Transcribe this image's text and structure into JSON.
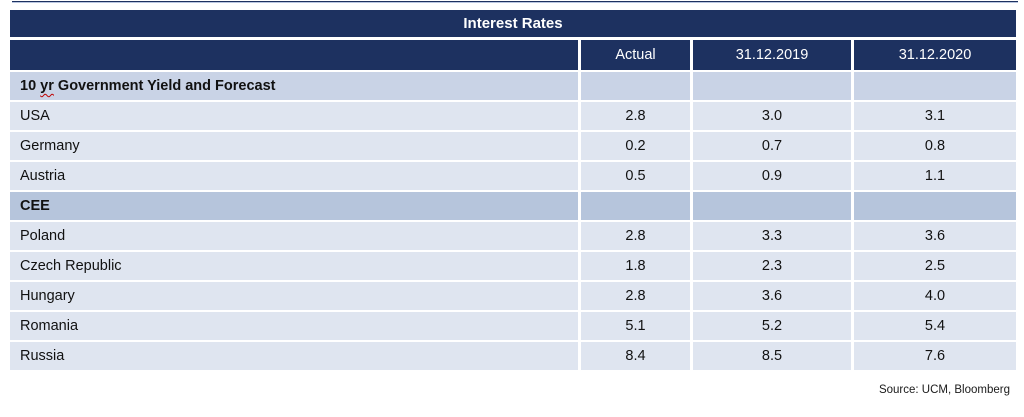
{
  "table": {
    "title": "Interest Rates",
    "columns": [
      "",
      "Actual",
      "31.12.2019",
      "31.12.2020"
    ],
    "rows": [
      {
        "type": "section",
        "variant": "section-light",
        "label": "10 yr Government Yield and Forecast",
        "label_parts": {
          "prefix": "10 ",
          "misspelled": "yr",
          "suffix": " Government Yield and Forecast"
        },
        "values": [
          "",
          "",
          ""
        ]
      },
      {
        "type": "data",
        "label": "USA",
        "values": [
          "2.8",
          "3.0",
          "3.1"
        ]
      },
      {
        "type": "data",
        "label": "Germany",
        "values": [
          "0.2",
          "0.7",
          "0.8"
        ]
      },
      {
        "type": "data",
        "label": "Austria",
        "values": [
          "0.5",
          "0.9",
          "1.1"
        ]
      },
      {
        "type": "section",
        "variant": "section-dark",
        "label": "CEE",
        "values": [
          "",
          "",
          ""
        ]
      },
      {
        "type": "data",
        "label": "Poland",
        "values": [
          "2.8",
          "3.3",
          "3.6"
        ]
      },
      {
        "type": "data",
        "label": "Czech Republic",
        "values": [
          "1.8",
          "2.3",
          "2.5"
        ]
      },
      {
        "type": "data",
        "label": "Hungary",
        "values": [
          "2.8",
          "3.6",
          "4.0"
        ]
      },
      {
        "type": "data",
        "label": "Romania",
        "values": [
          "5.1",
          "5.2",
          "5.4"
        ]
      },
      {
        "type": "data",
        "label": "Russia",
        "values": [
          "8.4",
          "8.5",
          "7.6"
        ]
      }
    ]
  },
  "source": "Source: UCM, Bloomberg",
  "colors": {
    "header_navy": "#1d3160",
    "section_light_bg": "#c9d3e6",
    "section_dark_bg": "#b6c5dc",
    "data_row_bg": "#dfe5f0",
    "spellcheck_red": "#c00000"
  }
}
